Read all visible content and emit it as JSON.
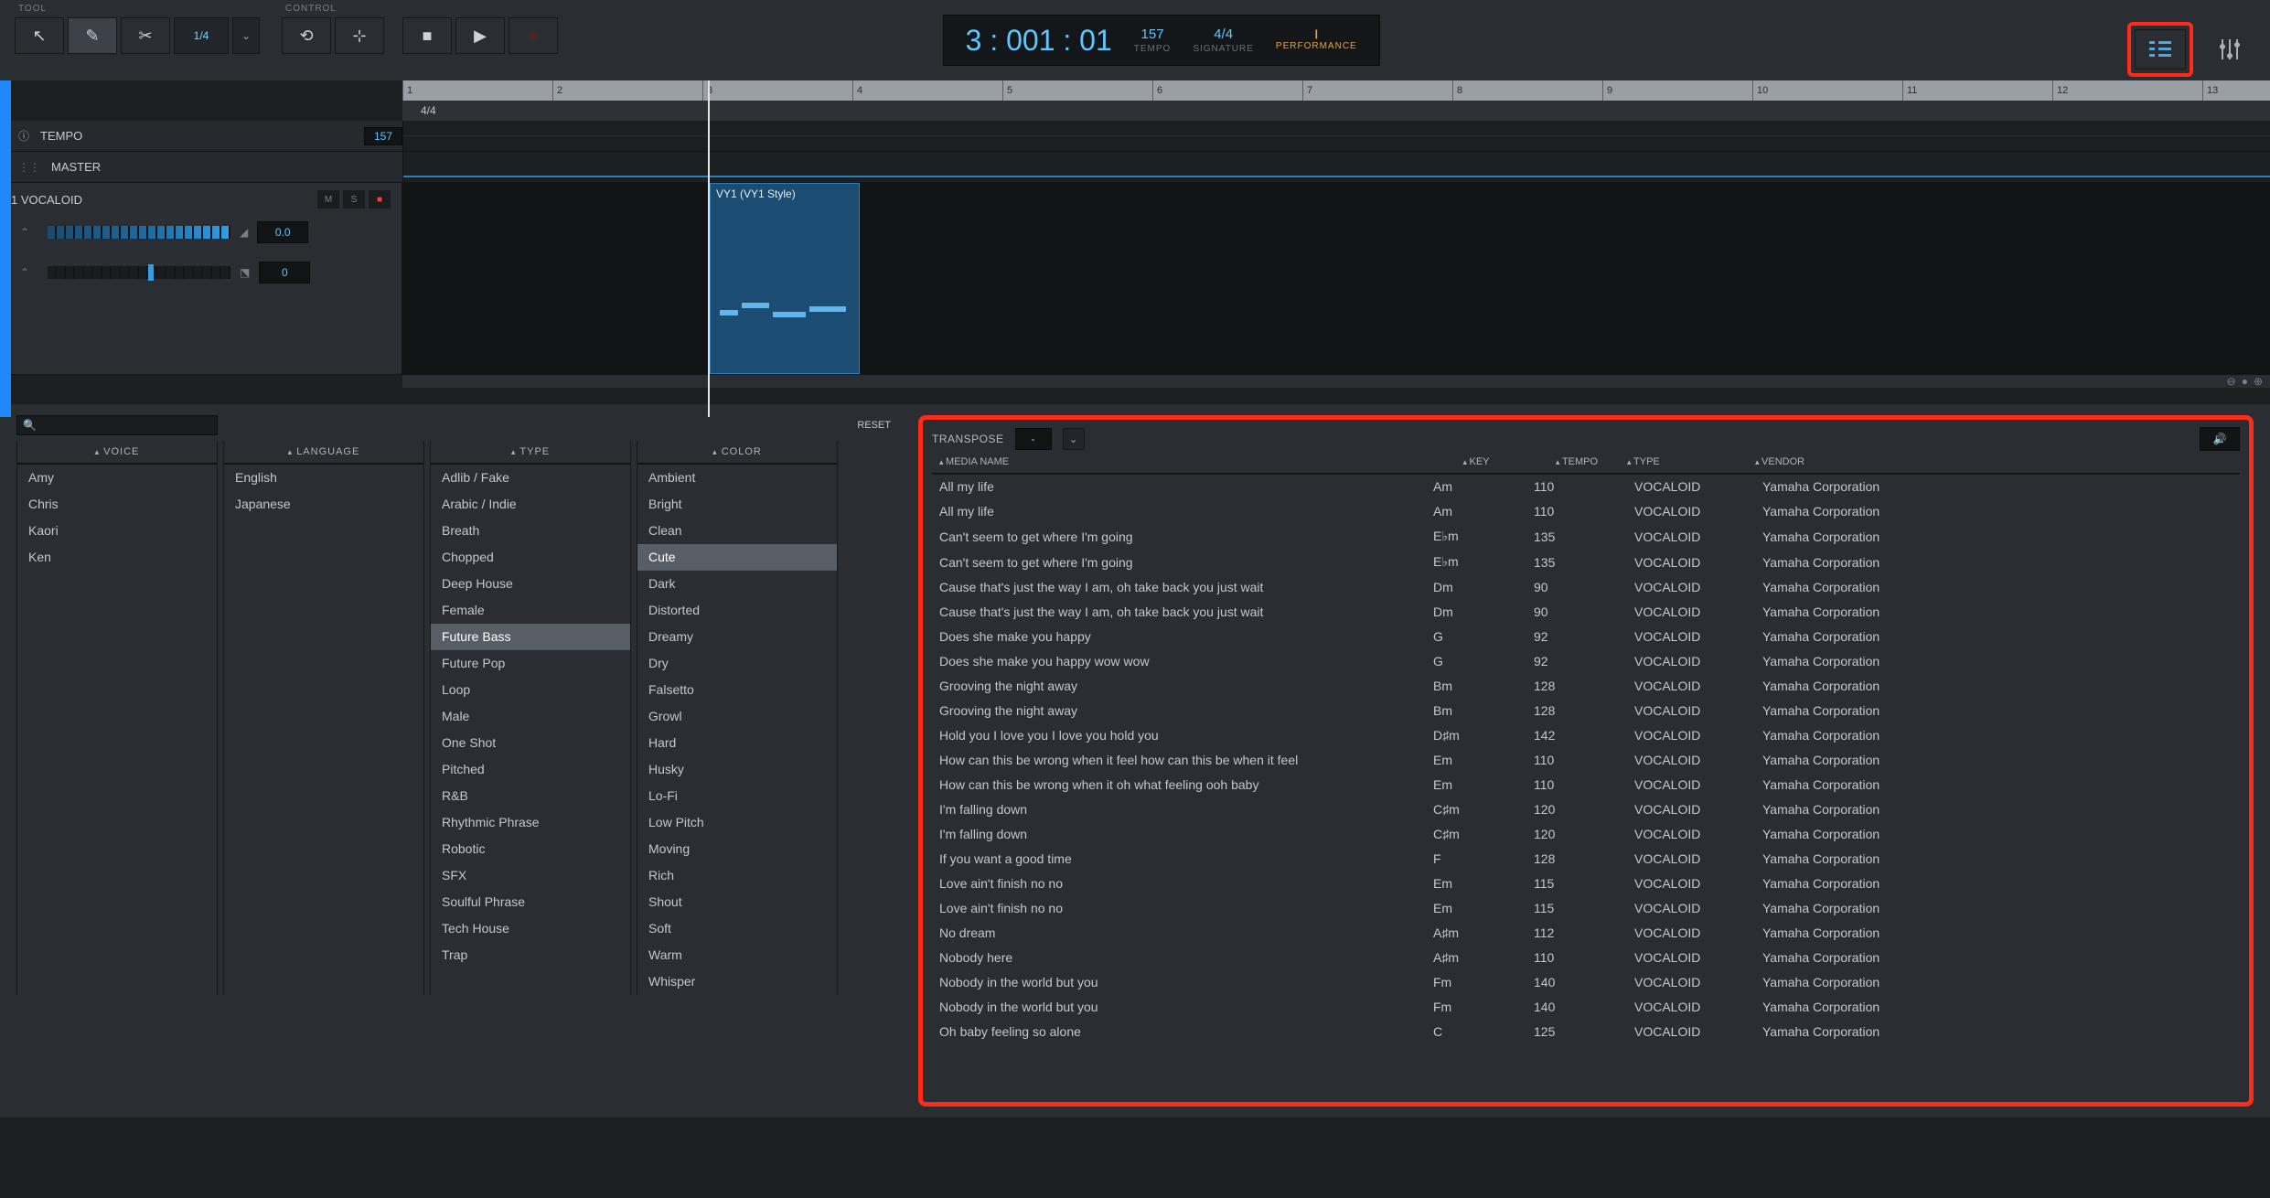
{
  "toolbar": {
    "tool_label": "TOOL",
    "control_label": "CONTROL",
    "quant_val": "1/4"
  },
  "transport": {
    "position": "3 : 001 : 01",
    "tempo_val": "157",
    "tempo_lbl": "TEMPO",
    "sig_val": "4/4",
    "sig_lbl": "SIGNATURE",
    "perf_lbl": "PERFORMANCE"
  },
  "ruler_bars": [
    "1",
    "2",
    "3",
    "4",
    "5",
    "6",
    "7",
    "8",
    "9",
    "10",
    "11",
    "12",
    "13"
  ],
  "sig_row": "4/4",
  "lanes": {
    "tempo_lbl": "TEMPO",
    "tempo_val": "157",
    "master_lbl": "MASTER"
  },
  "track": {
    "title": "1 VOCALOID",
    "m": "M",
    "s": "S",
    "vol": "0.0",
    "pan": "0",
    "clip_title": "VY1 (VY1 Style)"
  },
  "browser": {
    "reset": "RESET",
    "search_placeholder": "",
    "cols": {
      "voice": "VOICE",
      "language": "LANGUAGE",
      "type": "TYPE",
      "color": "COLOR"
    },
    "voice": [
      "Amy",
      "Chris",
      "Kaori",
      "Ken"
    ],
    "language": [
      "English",
      "Japanese"
    ],
    "type": [
      "Adlib / Fake",
      "Arabic / Indie",
      "Breath",
      "Chopped",
      "Deep House",
      "Female",
      "Future Bass",
      "Future Pop",
      "Loop",
      "Male",
      "One Shot",
      "Pitched",
      "R&B",
      "Rhythmic Phrase",
      "Robotic",
      "SFX",
      "Soulful Phrase",
      "Tech House",
      "Trap"
    ],
    "type_selected": [
      "Future Bass"
    ],
    "color": [
      "Ambient",
      "Bright",
      "Clean",
      "Cute",
      "Dark",
      "Distorted",
      "Dreamy",
      "Dry",
      "Falsetto",
      "Growl",
      "Hard",
      "Husky",
      "Lo-Fi",
      "Low Pitch",
      "Moving",
      "Rich",
      "Shout",
      "Soft",
      "Warm",
      "Whisper"
    ],
    "color_selected": [
      "Cute"
    ]
  },
  "media": {
    "transpose_lbl": "TRANSPOSE",
    "transpose_val": "-",
    "headers": {
      "name": "MEDIA NAME",
      "key": "KEY",
      "tempo": "TEMPO",
      "type": "TYPE",
      "vendor": "VENDOR"
    },
    "rows": [
      {
        "name": "All my life",
        "key": "Am",
        "tempo": "110",
        "type": "VOCALOID",
        "vendor": "Yamaha Corporation"
      },
      {
        "name": "All my life",
        "key": "Am",
        "tempo": "110",
        "type": "VOCALOID",
        "vendor": "Yamaha Corporation"
      },
      {
        "name": "Can't seem to get where I'm going",
        "key": "E♭m",
        "tempo": "135",
        "type": "VOCALOID",
        "vendor": "Yamaha Corporation"
      },
      {
        "name": "Can't seem to get where I'm going",
        "key": "E♭m",
        "tempo": "135",
        "type": "VOCALOID",
        "vendor": "Yamaha Corporation"
      },
      {
        "name": "Cause that's just the way I am, oh take back you just wait",
        "key": "Dm",
        "tempo": "90",
        "type": "VOCALOID",
        "vendor": "Yamaha Corporation"
      },
      {
        "name": "Cause that's just the way I am, oh take back you just wait",
        "key": "Dm",
        "tempo": "90",
        "type": "VOCALOID",
        "vendor": "Yamaha Corporation"
      },
      {
        "name": "Does she make you happy",
        "key": "G",
        "tempo": "92",
        "type": "VOCALOID",
        "vendor": "Yamaha Corporation"
      },
      {
        "name": "Does she make you happy wow wow",
        "key": "G",
        "tempo": "92",
        "type": "VOCALOID",
        "vendor": "Yamaha Corporation"
      },
      {
        "name": "Grooving the night away",
        "key": "Bm",
        "tempo": "128",
        "type": "VOCALOID",
        "vendor": "Yamaha Corporation"
      },
      {
        "name": "Grooving the night away",
        "key": "Bm",
        "tempo": "128",
        "type": "VOCALOID",
        "vendor": "Yamaha Corporation"
      },
      {
        "name": "Hold you I love you I love you hold you",
        "key": "D♯m",
        "tempo": "142",
        "type": "VOCALOID",
        "vendor": "Yamaha Corporation"
      },
      {
        "name": "How can this be wrong when it feel how can this be when it feel",
        "key": "Em",
        "tempo": "110",
        "type": "VOCALOID",
        "vendor": "Yamaha Corporation"
      },
      {
        "name": "How can this be wrong when it oh what feeling ooh baby",
        "key": "Em",
        "tempo": "110",
        "type": "VOCALOID",
        "vendor": "Yamaha Corporation"
      },
      {
        "name": "I'm falling down",
        "key": "C♯m",
        "tempo": "120",
        "type": "VOCALOID",
        "vendor": "Yamaha Corporation"
      },
      {
        "name": "I'm falling down",
        "key": "C♯m",
        "tempo": "120",
        "type": "VOCALOID",
        "vendor": "Yamaha Corporation"
      },
      {
        "name": "If you want a good time",
        "key": "F",
        "tempo": "128",
        "type": "VOCALOID",
        "vendor": "Yamaha Corporation"
      },
      {
        "name": "Love ain't finish no no",
        "key": "Em",
        "tempo": "115",
        "type": "VOCALOID",
        "vendor": "Yamaha Corporation"
      },
      {
        "name": "Love ain't finish no no",
        "key": "Em",
        "tempo": "115",
        "type": "VOCALOID",
        "vendor": "Yamaha Corporation"
      },
      {
        "name": "No dream",
        "key": "A♯m",
        "tempo": "112",
        "type": "VOCALOID",
        "vendor": "Yamaha Corporation"
      },
      {
        "name": "Nobody here",
        "key": "A♯m",
        "tempo": "110",
        "type": "VOCALOID",
        "vendor": "Yamaha Corporation"
      },
      {
        "name": "Nobody in the world but you",
        "key": "Fm",
        "tempo": "140",
        "type": "VOCALOID",
        "vendor": "Yamaha Corporation"
      },
      {
        "name": "Nobody in the world but you",
        "key": "Fm",
        "tempo": "140",
        "type": "VOCALOID",
        "vendor": "Yamaha Corporation"
      },
      {
        "name": "Oh baby feeling so alone",
        "key": "C",
        "tempo": "125",
        "type": "VOCALOID",
        "vendor": "Yamaha Corporation"
      }
    ]
  }
}
